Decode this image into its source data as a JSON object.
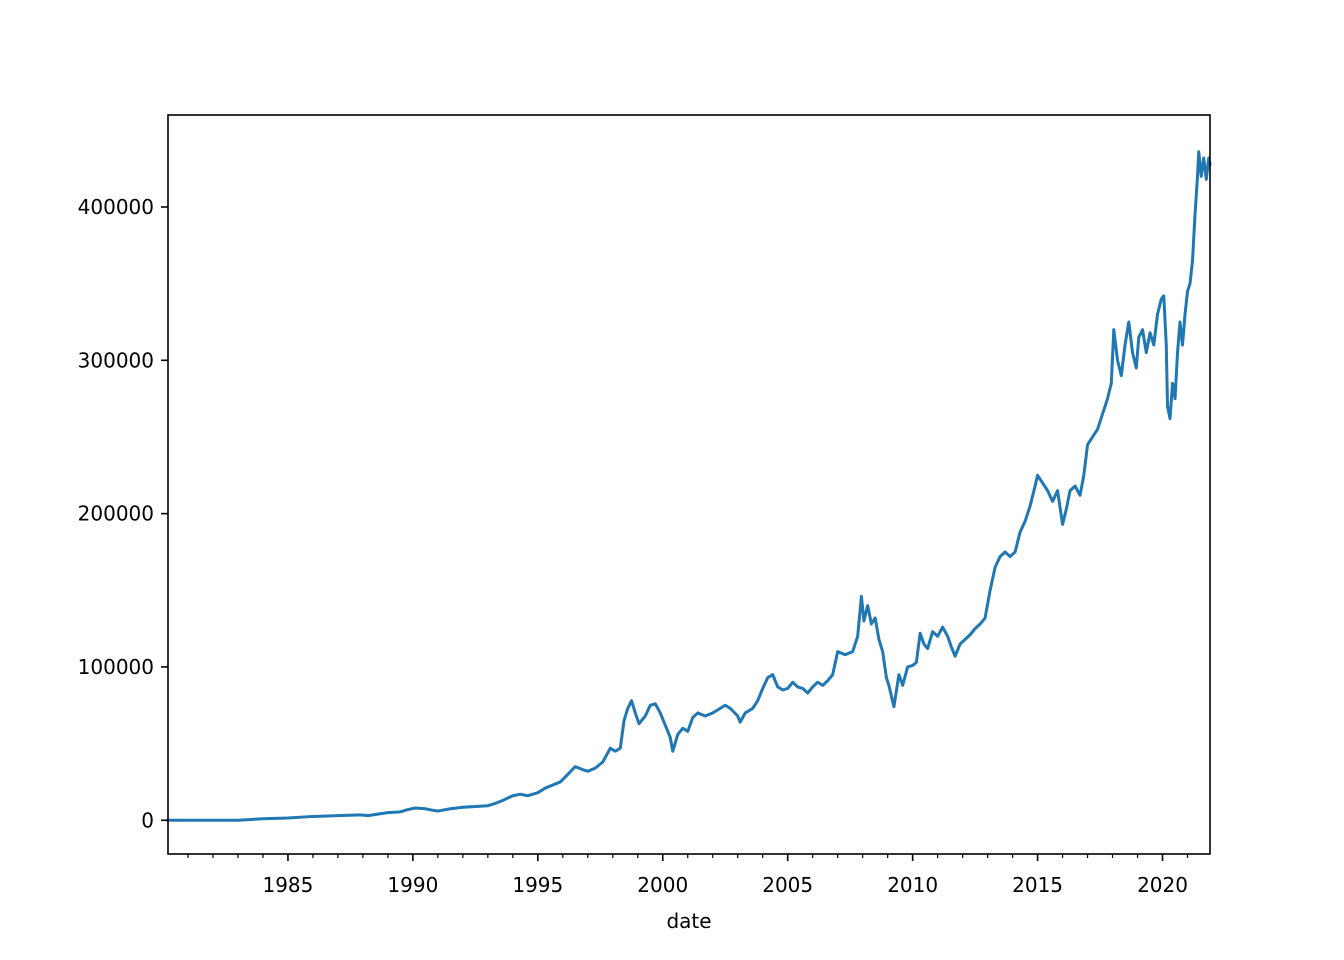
{
  "colors": {
    "series": "#1f77b4",
    "axes": "#000000",
    "background": "#ffffff"
  },
  "chart_data": {
    "type": "line",
    "title": "",
    "xlabel": "date",
    "ylabel": "",
    "xlim": [
      1980.2,
      2021.9
    ],
    "ylim": [
      -22000,
      460000
    ],
    "grid": false,
    "legend": "none",
    "x_major_ticks": [
      1985,
      1990,
      1995,
      2000,
      2005,
      2010,
      2015,
      2020
    ],
    "x_tick_labels": [
      "1985",
      "1990",
      "1995",
      "2000",
      "2005",
      "2010",
      "2015",
      "2020"
    ],
    "y_ticks": [
      0,
      100000,
      200000,
      300000,
      400000
    ],
    "y_tick_labels": [
      "0",
      "100000",
      "200000",
      "300000",
      "400000"
    ],
    "series": [
      {
        "color": "#1f77b4",
        "x": [
          1980.2,
          1981.0,
          1982.0,
          1983.0,
          1984.0,
          1985.0,
          1986.0,
          1987.0,
          1987.9,
          1988.2,
          1988.6,
          1989.0,
          1989.5,
          1989.8,
          1990.1,
          1990.5,
          1990.8,
          1991.0,
          1991.5,
          1992.0,
          1992.5,
          1993.0,
          1993.3,
          1993.6,
          1994.0,
          1994.3,
          1994.6,
          1995.0,
          1995.3,
          1995.6,
          1995.9,
          1996.2,
          1996.5,
          1996.8,
          1997.0,
          1997.3,
          1997.6,
          1997.9,
          1998.1,
          1998.3,
          1998.45,
          1998.6,
          1998.75,
          1998.9,
          1999.05,
          1999.3,
          1999.5,
          1999.7,
          1999.9,
          2000.1,
          2000.3,
          2000.4,
          2000.6,
          2000.8,
          2001.0,
          2001.2,
          2001.4,
          2001.7,
          2002.0,
          2002.2,
          2002.5,
          2002.7,
          2003.0,
          2003.1,
          2003.3,
          2003.6,
          2003.8,
          2004.0,
          2004.2,
          2004.4,
          2004.6,
          2004.8,
          2005.0,
          2005.2,
          2005.4,
          2005.6,
          2005.8,
          2006.0,
          2006.2,
          2006.4,
          2006.6,
          2006.8,
          2007.0,
          2007.3,
          2007.6,
          2007.8,
          2007.95,
          2008.05,
          2008.2,
          2008.35,
          2008.5,
          2008.65,
          2008.8,
          2008.95,
          2009.05,
          2009.25,
          2009.45,
          2009.6,
          2009.8,
          2010.0,
          2010.15,
          2010.3,
          2010.45,
          2010.6,
          2010.8,
          2011.0,
          2011.2,
          2011.4,
          2011.55,
          2011.7,
          2011.9,
          2012.1,
          2012.3,
          2012.5,
          2012.7,
          2012.9,
          2013.1,
          2013.3,
          2013.5,
          2013.7,
          2013.9,
          2014.1,
          2014.3,
          2014.5,
          2014.7,
          2014.9,
          2015.0,
          2015.2,
          2015.4,
          2015.6,
          2015.8,
          2016.0,
          2016.15,
          2016.3,
          2016.5,
          2016.7,
          2016.85,
          2017.0,
          2017.2,
          2017.4,
          2017.6,
          2017.8,
          2017.95,
          2018.05,
          2018.2,
          2018.35,
          2018.5,
          2018.65,
          2018.8,
          2018.95,
          2019.05,
          2019.2,
          2019.35,
          2019.5,
          2019.65,
          2019.8,
          2019.95,
          2020.05,
          2020.15,
          2020.2,
          2020.3,
          2020.4,
          2020.5,
          2020.6,
          2020.7,
          2020.8,
          2020.9,
          2021.0,
          2021.1,
          2021.2,
          2021.3,
          2021.4,
          2021.45,
          2021.55,
          2021.65,
          2021.75,
          2021.85,
          2021.9
        ],
        "y": [
          0,
          0,
          0,
          0,
          1000,
          1500,
          2500,
          3000,
          3500,
          3000,
          4000,
          5000,
          5500,
          7000,
          8000,
          7500,
          6500,
          6000,
          7500,
          8500,
          9000,
          9500,
          11000,
          13000,
          16000,
          17000,
          16000,
          18000,
          21000,
          23000,
          25000,
          30000,
          35000,
          33000,
          32000,
          34000,
          38000,
          47000,
          45000,
          47000,
          65000,
          73000,
          78000,
          70000,
          63000,
          68000,
          75000,
          76000,
          70000,
          62000,
          54000,
          45000,
          56000,
          60000,
          58000,
          67000,
          70000,
          68000,
          70000,
          72000,
          75000,
          73000,
          68000,
          64000,
          70000,
          73000,
          78000,
          86000,
          93000,
          95000,
          87000,
          85000,
          86000,
          90000,
          87000,
          86000,
          83000,
          87000,
          90000,
          88000,
          91000,
          95000,
          110000,
          108000,
          110000,
          120000,
          146000,
          130000,
          140000,
          128000,
          132000,
          118000,
          110000,
          93000,
          88000,
          74000,
          95000,
          88000,
          100000,
          101000,
          103000,
          122000,
          115000,
          112000,
          123000,
          120000,
          126000,
          120000,
          113000,
          107000,
          115000,
          118000,
          121000,
          125000,
          128000,
          132000,
          150000,
          165000,
          172000,
          175000,
          172000,
          175000,
          188000,
          195000,
          205000,
          218000,
          225000,
          220000,
          215000,
          208000,
          215000,
          193000,
          203000,
          215000,
          218000,
          212000,
          225000,
          245000,
          250000,
          255000,
          265000,
          275000,
          285000,
          320000,
          300000,
          290000,
          310000,
          325000,
          305000,
          295000,
          315000,
          320000,
          305000,
          318000,
          310000,
          330000,
          340000,
          342000,
          310000,
          270000,
          262000,
          285000,
          275000,
          305000,
          325000,
          310000,
          330000,
          345000,
          350000,
          365000,
          395000,
          420000,
          436000,
          420000,
          432000,
          418000,
          432000,
          428000
        ]
      }
    ]
  }
}
